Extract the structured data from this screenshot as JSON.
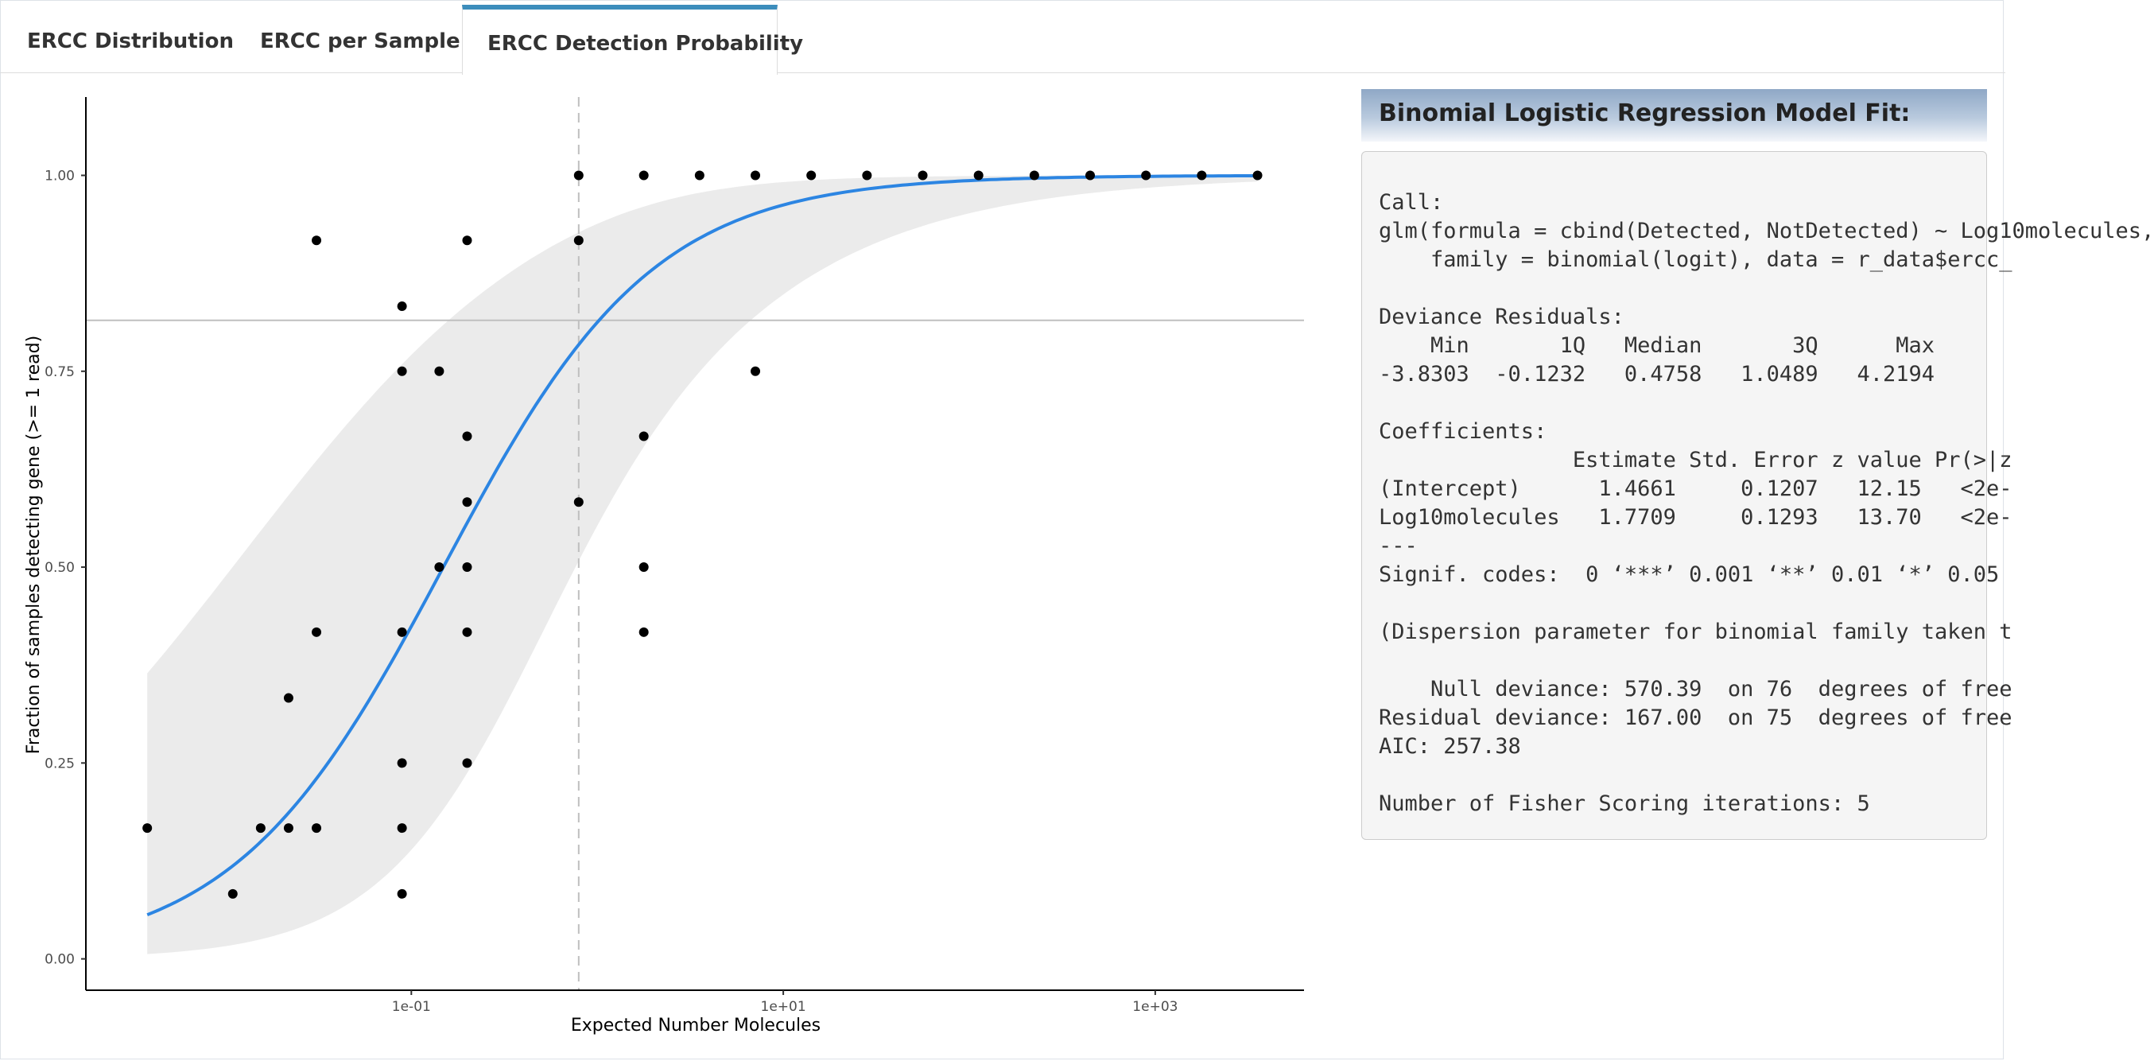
{
  "tabs": [
    {
      "label": "ERCC Distribution",
      "active": false
    },
    {
      "label": "ERCC per Sample",
      "active": false
    },
    {
      "label": "ERCC Detection Probability",
      "active": true
    }
  ],
  "model": {
    "header": "Binomial Logistic Regression Model Fit:",
    "output_lines": [
      "Call:",
      "glm(formula = cbind(Detected, NotDetected) ~ Log10molecules,",
      "    family = binomial(logit), data = r_data$ercc_",
      "",
      "Deviance Residuals:",
      "    Min       1Q   Median       3Q      Max",
      "-3.8303  -0.1232   0.4758   1.0489   4.2194",
      "",
      "Coefficients:",
      "               Estimate Std. Error z value Pr(>|z",
      "(Intercept)      1.4661     0.1207   12.15   <2e-",
      "Log10molecules   1.7709     0.1293   13.70   <2e-",
      "---",
      "Signif. codes:  0 ‘***’ 0.001 ‘**’ 0.01 ‘*’ 0.05",
      "",
      "(Dispersion parameter for binomial family taken t",
      "",
      "    Null deviance: 570.39  on 76  degrees of free",
      "Residual deviance: 167.00  on 75  degrees of free",
      "AIC: 257.38",
      "",
      "Number of Fisher Scoring iterations: 5"
    ]
  },
  "colors": {
    "fit_line": "#2c85e2",
    "ribbon": "#ebebeb",
    "threshold_line": "#bfbfbf",
    "tab_active_border": "#3c8dbc"
  },
  "chart_data": {
    "type": "scatter",
    "title": "",
    "xlabel": "Expected Number Molecules",
    "ylabel": "Fraction of samples detecting gene (>= 1 read)",
    "x_scale": "log10",
    "xlim_log10": [
      -2.75,
      3.8
    ],
    "ylim": [
      -0.04,
      1.1
    ],
    "x_ticks": [
      {
        "log10": -1,
        "label": "1e-01"
      },
      {
        "log10": 1,
        "label": "1e+01"
      },
      {
        "log10": 3,
        "label": "1e+03"
      }
    ],
    "y_ticks": [
      {
        "value": 0,
        "label": "0.00"
      },
      {
        "value": 0.25,
        "label": "0.25"
      },
      {
        "value": 0.5,
        "label": "0.50"
      },
      {
        "value": 0.75,
        "label": "0.75"
      },
      {
        "value": 1,
        "label": "1.00"
      }
    ],
    "points_log10x": [
      [
        -2.42,
        0.167
      ],
      [
        -1.96,
        0.083
      ],
      [
        -1.81,
        0.167
      ],
      [
        -1.66,
        0.333
      ],
      [
        -1.66,
        0.167
      ],
      [
        -1.51,
        0.917
      ],
      [
        -1.51,
        0.417
      ],
      [
        -1.51,
        0.167
      ],
      [
        -1.05,
        0.833
      ],
      [
        -1.05,
        0.75
      ],
      [
        -1.05,
        0.417
      ],
      [
        -1.05,
        0.25
      ],
      [
        -1.05,
        0.167
      ],
      [
        -1.05,
        0.083
      ],
      [
        -0.85,
        0.75
      ],
      [
        -0.85,
        0.5
      ],
      [
        -0.7,
        0.917
      ],
      [
        -0.7,
        0.667
      ],
      [
        -0.7,
        0.583
      ],
      [
        -0.7,
        0.5
      ],
      [
        -0.7,
        0.417
      ],
      [
        -0.7,
        0.25
      ],
      [
        -0.1,
        1.0
      ],
      [
        -0.1,
        0.917
      ],
      [
        -0.1,
        0.583
      ],
      [
        0.25,
        1.0
      ],
      [
        0.25,
        0.667
      ],
      [
        0.25,
        0.5
      ],
      [
        0.25,
        0.417
      ],
      [
        0.55,
        1.0
      ],
      [
        0.85,
        1.0
      ],
      [
        0.85,
        0.75
      ],
      [
        1.15,
        1.0
      ],
      [
        1.45,
        1.0
      ],
      [
        1.75,
        1.0
      ],
      [
        2.05,
        1.0
      ],
      [
        2.35,
        1.0
      ],
      [
        2.65,
        1.0
      ],
      [
        2.95,
        1.0
      ],
      [
        3.25,
        1.0
      ],
      [
        3.55,
        1.0
      ]
    ],
    "fit": {
      "intercept": 1.4661,
      "slope": 1.7709,
      "se_intercept": 0.1207,
      "se_slope": 0.1293
    },
    "threshold_x_log10": -0.1,
    "threshold_y": 0.815,
    "grid": false,
    "legend": "none"
  }
}
